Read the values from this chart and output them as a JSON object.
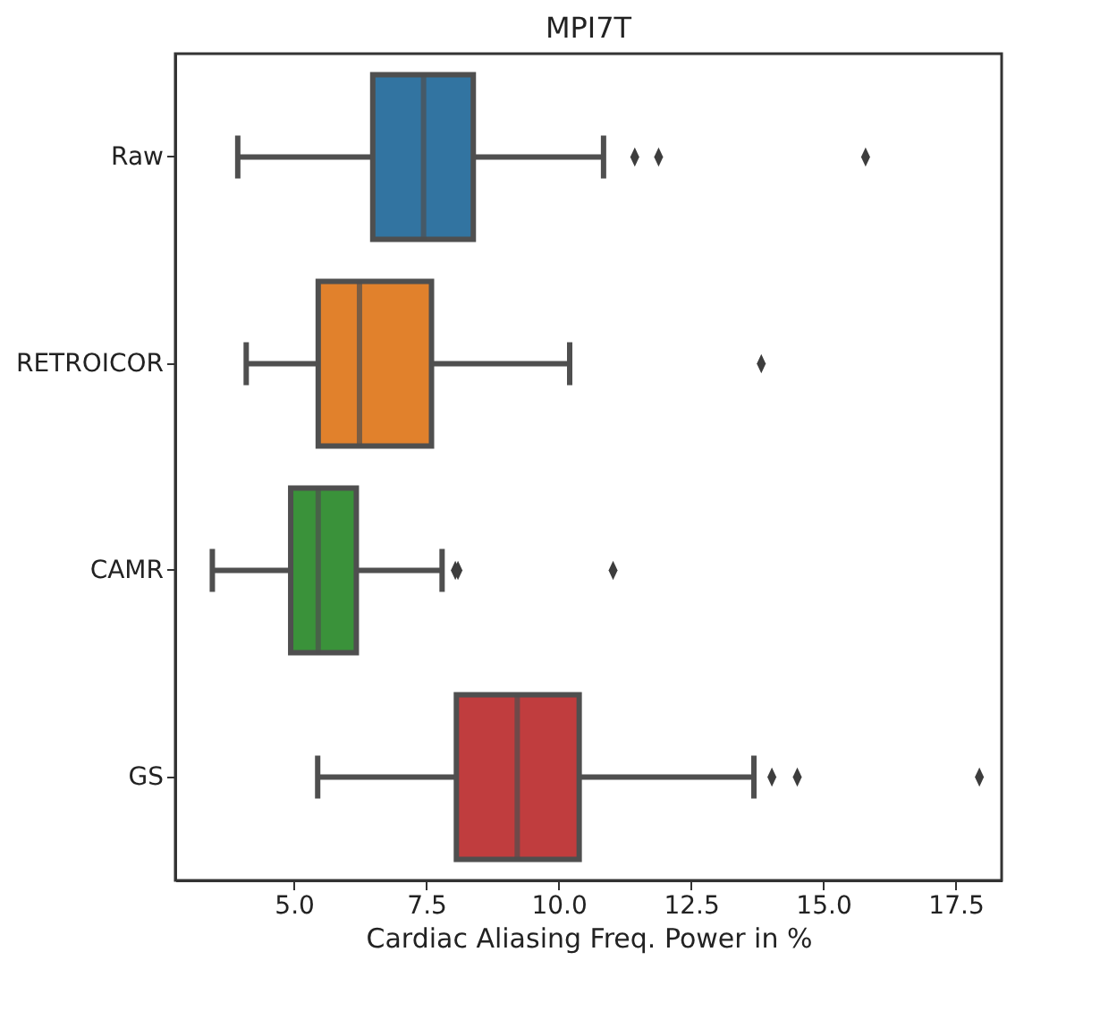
{
  "chart_data": {
    "type": "box",
    "orientation": "horizontal",
    "title": "MPI7T",
    "xlabel": "Cardiac Aliasing Freq. Power in %",
    "categories": [
      "Raw",
      "RETROICOR",
      "CAMR",
      "GS"
    ],
    "colors": [
      "#3274a1",
      "#e1812c",
      "#3a923a",
      "#c03d3e"
    ],
    "boxes": [
      {
        "low": 3.94,
        "q1": 6.49,
        "median": 7.45,
        "q3": 8.39,
        "high": 10.85,
        "outliers": [
          11.44,
          11.89,
          15.8
        ]
      },
      {
        "low": 4.1,
        "q1": 5.46,
        "median": 6.24,
        "q3": 7.6,
        "high": 10.21,
        "outliers": [
          13.83
        ]
      },
      {
        "low": 3.46,
        "q1": 4.94,
        "median": 5.46,
        "q3": 6.18,
        "high": 7.8,
        "outliers": [
          8.05,
          8.1,
          11.03
        ]
      },
      {
        "low": 5.45,
        "q1": 8.07,
        "median": 9.22,
        "q3": 10.39,
        "high": 13.69,
        "outliers": [
          14.03,
          14.51,
          17.95
        ]
      }
    ],
    "xlim": [
      2.76,
      18.37
    ],
    "xticks": [
      {
        "value": 5,
        "label": "5.0"
      },
      {
        "value": 7.5,
        "label": "7.5"
      },
      {
        "value": 10,
        "label": "10.0"
      },
      {
        "value": 12.5,
        "label": "12.5"
      },
      {
        "value": 15,
        "label": "15.0"
      },
      {
        "value": 17.5,
        "label": "17.5"
      }
    ],
    "grid": false,
    "marker": "diamond"
  }
}
